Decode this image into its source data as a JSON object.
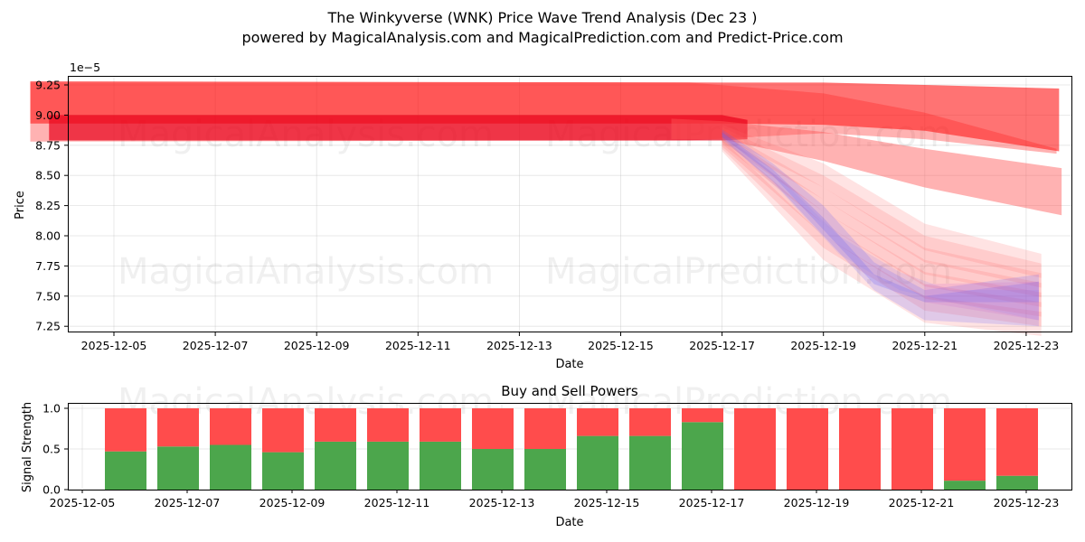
{
  "header": {
    "title": "The Winkyverse (WNK) Price Wave Trend Analysis (Dec 23 )",
    "subtitle": "powered by MagicalAnalysis.com and MagicalPrediction.com and Predict-Price.com"
  },
  "watermarks": [
    "MagicalAnalysis.com",
    "MagicalPrediction.com"
  ],
  "chart_data": [
    {
      "type": "area",
      "title": "The Winkyverse (WNK) Price Wave Trend Analysis (Dec 23 )",
      "xlabel": "Date",
      "ylabel": "Price",
      "y_scale_label": "1e−5",
      "ylim": [
        7.2,
        9.33
      ],
      "y_ticks": [
        "7.25",
        "7.50",
        "7.75",
        "8.00",
        "8.25",
        "8.50",
        "8.75",
        "9.00",
        "9.25"
      ],
      "x_ticks": [
        "2025-12-05",
        "2025-12-07",
        "2025-12-09",
        "2025-12-11",
        "2025-12-13",
        "2025-12-15",
        "2025-12-17",
        "2025-12-19",
        "2025-12-21",
        "2025-12-23"
      ],
      "grid": true,
      "series": [
        {
          "name": "red-band-upper-wide",
          "color": "#ff0000",
          "x": [
            "2025-12-04",
            "2025-12-17",
            "2025-12-19",
            "2025-12-21",
            "2025-12-23"
          ],
          "upper": [
            9.28,
            9.26,
            9.25,
            9.23,
            9.2
          ],
          "lower": [
            8.92,
            8.93,
            8.9,
            8.85,
            8.7
          ]
        },
        {
          "name": "red-band-core",
          "color": "#ee0011",
          "x": [
            "2025-12-04",
            "2025-12-17",
            "2025-12-19",
            "2025-12-21",
            "2025-12-23"
          ],
          "upper": [
            9.0,
            9.0,
            8.92,
            8.82,
            8.68
          ],
          "lower": [
            8.8,
            8.8,
            8.7,
            8.5,
            8.3
          ]
        },
        {
          "name": "red-band-mid",
          "color": "#ff6666",
          "x": [
            "2025-12-17",
            "2025-12-19",
            "2025-12-21",
            "2025-12-23"
          ],
          "upper": [
            8.95,
            8.8,
            8.65,
            8.5
          ],
          "lower": [
            8.8,
            8.62,
            8.42,
            8.18
          ]
        },
        {
          "name": "red-fan-low",
          "color": "#ff9999",
          "x": [
            "2025-12-17",
            "2025-12-19",
            "2025-12-21",
            "2025-12-23"
          ],
          "upper": [
            8.9,
            8.55,
            8.05,
            7.7
          ],
          "lower": [
            8.8,
            8.3,
            7.75,
            7.3
          ]
        },
        {
          "name": "blue-fan",
          "color": "#6666ff",
          "x": [
            "2025-12-17",
            "2025-12-19",
            "2025-12-20",
            "2025-12-21",
            "2025-12-23"
          ],
          "upper": [
            8.88,
            8.35,
            7.8,
            7.6,
            7.65
          ],
          "lower": [
            8.82,
            8.1,
            7.52,
            7.3,
            7.25
          ]
        }
      ]
    },
    {
      "type": "bar",
      "title": "Buy and Sell Powers",
      "xlabel": "Date",
      "ylabel": "Signal Strength",
      "ylim": [
        0,
        1.05
      ],
      "y_ticks": [
        "0.0",
        "0.5",
        "1.0"
      ],
      "x_ticks": [
        "2025-12-05",
        "2025-12-07",
        "2025-12-09",
        "2025-12-11",
        "2025-12-13",
        "2025-12-15",
        "2025-12-17",
        "2025-12-19",
        "2025-12-21",
        "2025-12-23"
      ],
      "grid": true,
      "categories": [
        "2025-12-06",
        "2025-12-07",
        "2025-12-08",
        "2025-12-09",
        "2025-12-10",
        "2025-12-11",
        "2025-12-12",
        "2025-12-13",
        "2025-12-14",
        "2025-12-15",
        "2025-12-16",
        "2025-12-17",
        "2025-12-18",
        "2025-12-19",
        "2025-12-20",
        "2025-12-21",
        "2025-12-22",
        "2025-12-23"
      ],
      "series": [
        {
          "name": "Buy",
          "color": "#4ca64c",
          "values": [
            0.47,
            0.53,
            0.55,
            0.46,
            0.59,
            0.59,
            0.59,
            0.5,
            0.5,
            0.66,
            0.66,
            0.83,
            0.0,
            0.0,
            0.0,
            0.0,
            0.11,
            0.17
          ]
        },
        {
          "name": "Sell",
          "color": "#ff4c4c",
          "values": [
            0.53,
            0.47,
            0.45,
            0.54,
            0.41,
            0.41,
            0.41,
            0.5,
            0.5,
            0.34,
            0.34,
            0.17,
            1.0,
            1.0,
            1.0,
            1.0,
            0.89,
            0.83
          ]
        }
      ]
    }
  ]
}
